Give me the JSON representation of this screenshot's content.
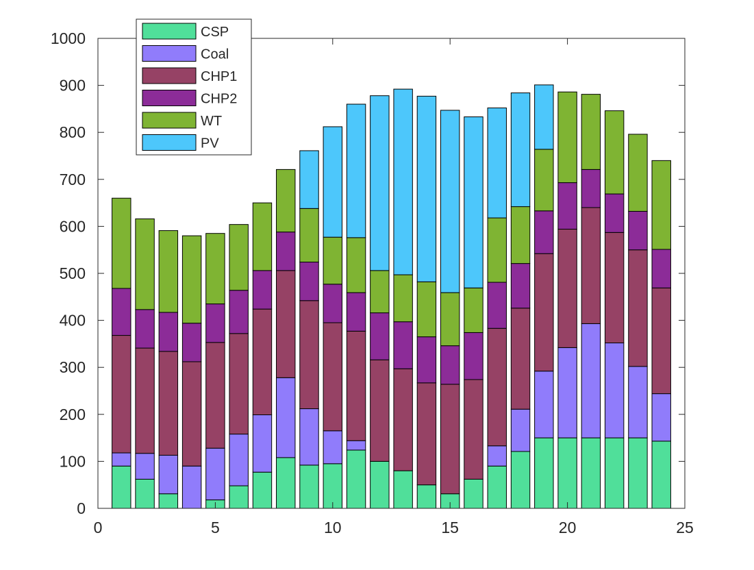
{
  "chart_data": {
    "type": "bar",
    "stacked": true,
    "title": "",
    "xlabel": "",
    "ylabel": "",
    "xlim": [
      0,
      25
    ],
    "ylim": [
      0,
      1000
    ],
    "xticks": [
      "0",
      "5",
      "10",
      "15",
      "20",
      "25"
    ],
    "yticks": [
      "0",
      "100",
      "200",
      "300",
      "400",
      "500",
      "600",
      "700",
      "800",
      "900",
      "1000"
    ],
    "grid": false,
    "legend_position": "top-left",
    "x": [
      1,
      2,
      3,
      4,
      5,
      6,
      7,
      8,
      9,
      10,
      11,
      12,
      13,
      14,
      15,
      16,
      17,
      18,
      19,
      20,
      21,
      22,
      23,
      24
    ],
    "series": [
      {
        "name": "CSP",
        "color": "#50DF9A",
        "values": [
          90,
          62,
          31,
          0,
          18,
          48,
          77,
          108,
          92,
          95,
          124,
          100,
          80,
          50,
          31,
          62,
          90,
          121,
          150,
          150,
          150,
          150,
          150,
          143
        ]
      },
      {
        "name": "Coal",
        "color": "#907CFB",
        "values": [
          28,
          55,
          82,
          90,
          110,
          110,
          122,
          170,
          120,
          70,
          20,
          0,
          0,
          0,
          0,
          0,
          43,
          90,
          142,
          192,
          243,
          202,
          152,
          101
        ]
      },
      {
        "name": "CHP1",
        "color": "#964265",
        "values": [
          250,
          224,
          221,
          222,
          225,
          214,
          225,
          228,
          230,
          230,
          233,
          216,
          217,
          217,
          233,
          212,
          250,
          215,
          250,
          252,
          247,
          235,
          248,
          225
        ]
      },
      {
        "name": "CHP2",
        "color": "#8C2C98",
        "values": [
          100,
          82,
          83,
          82,
          82,
          92,
          82,
          82,
          82,
          82,
          82,
          100,
          100,
          98,
          82,
          100,
          98,
          95,
          91,
          99,
          81,
          82,
          82,
          82
        ]
      },
      {
        "name": "WT",
        "color": "#7FB433",
        "values": [
          192,
          193,
          174,
          186,
          150,
          140,
          144,
          133,
          114,
          100,
          117,
          90,
          100,
          117,
          113,
          95,
          137,
          121,
          131,
          193,
          160,
          177,
          164,
          189
        ]
      },
      {
        "name": "PV",
        "color": "#4DC7FB",
        "values": [
          0,
          0,
          0,
          0,
          0,
          0,
          0,
          0,
          123,
          235,
          284,
          372,
          395,
          395,
          388,
          364,
          234,
          242,
          137,
          0,
          0,
          0,
          0,
          0
        ]
      }
    ]
  }
}
